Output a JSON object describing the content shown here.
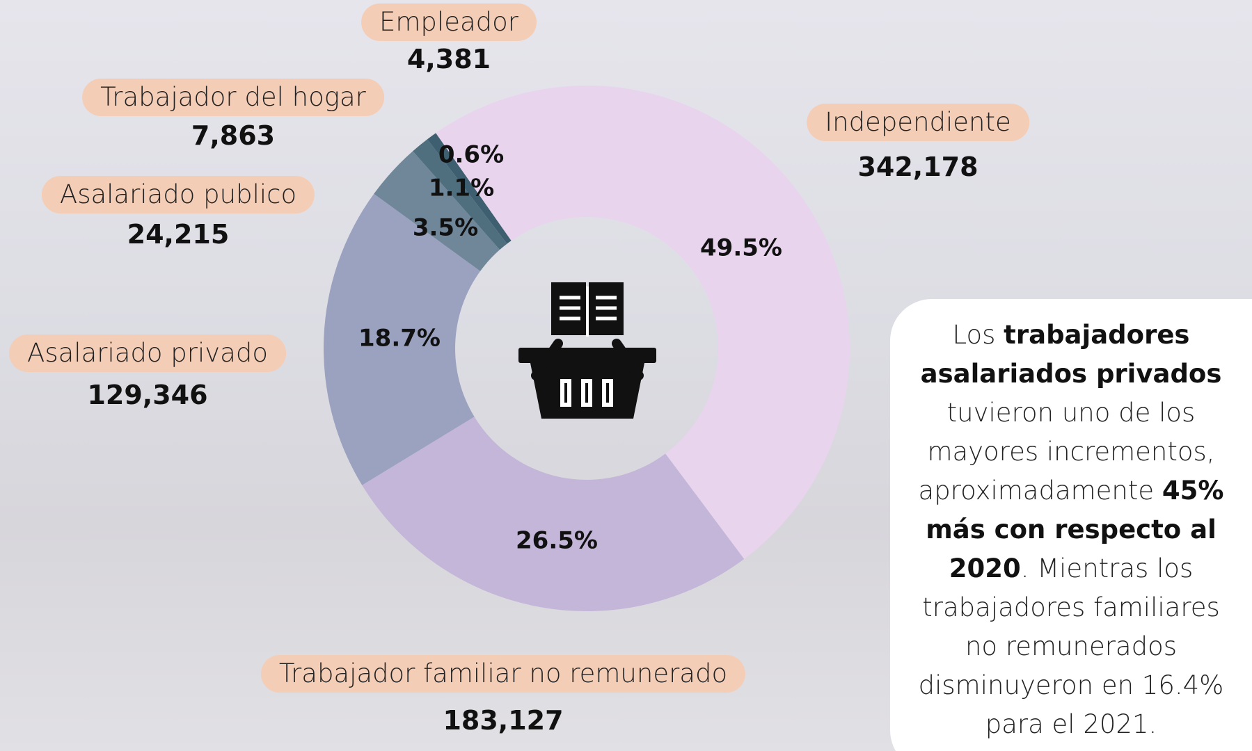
{
  "chart_data": {
    "type": "pie",
    "categories": [
      "Independiente",
      "Trabajador familiar no remunerado",
      "Asalariado privado",
      "Asalariado publico",
      "Trabajador del hogar",
      "Empleador"
    ],
    "values": [
      342178,
      183127,
      129346,
      24215,
      7863,
      4381
    ],
    "value_labels": [
      "342,178",
      "183,127",
      "129,346",
      "24,215",
      "7,863",
      "4,381"
    ],
    "percent_labels": [
      "49.5%",
      "26.5%",
      "18.7%",
      "3.5%",
      "1.1%",
      "0.6%"
    ],
    "colors": [
      "#e9d4ee",
      "#c4b6d8",
      "#9ba2bf",
      "#708799",
      "#4f6f7f",
      "#3d5f70"
    ],
    "donut": true
  },
  "note": [
    {
      "text": "Los ",
      "bold": false
    },
    {
      "text": "trabajadores asalariados privados",
      "bold": true
    },
    {
      "text": " tuvieron uno de los mayores incrementos, aproximadamente ",
      "bold": false
    },
    {
      "text": "45% más con respecto al 2020",
      "bold": true
    },
    {
      "text": ". Mientras los trabajadores familiares no remunerados disminuyeron en 16.4% para el 2021.",
      "bold": false
    }
  ]
}
